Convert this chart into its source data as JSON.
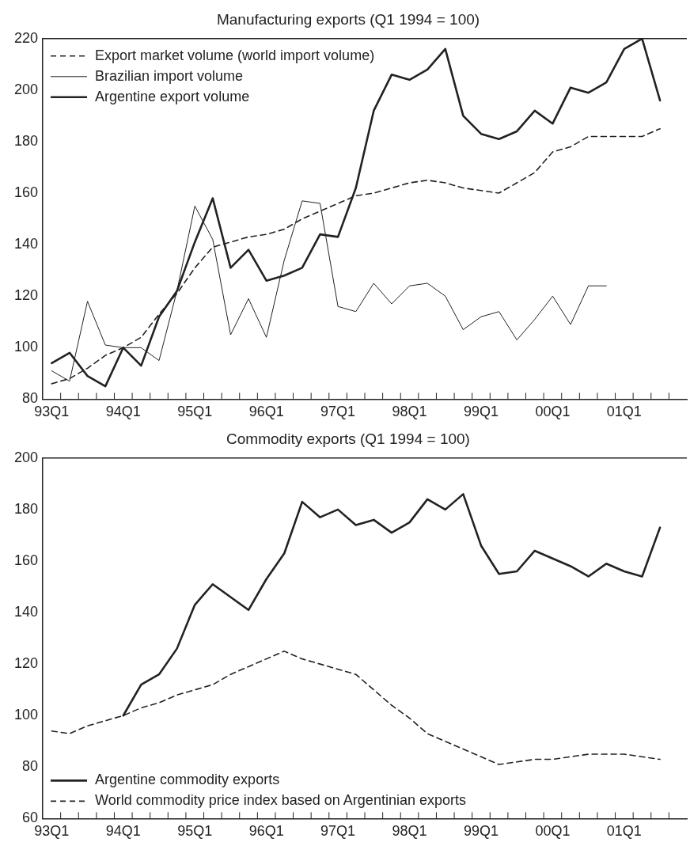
{
  "chart_data": [
    {
      "type": "line",
      "title": "Manufacturing exports (Q1 1994 = 100)",
      "categories": [
        "93Q1",
        null,
        null,
        null,
        "94Q1",
        null,
        null,
        null,
        "95Q1",
        null,
        null,
        null,
        "96Q1",
        null,
        null,
        null,
        "97Q1",
        null,
        null,
        null,
        "98Q1",
        null,
        null,
        null,
        "99Q1",
        null,
        null,
        null,
        "00Q1",
        null,
        null,
        null,
        "01Q1",
        null,
        null,
        null
      ],
      "series": [
        {
          "name": "Export market volume (world import volume)",
          "color": "#222222",
          "line_style": "dashed",
          "values": [
            86,
            88,
            92,
            97,
            100,
            104,
            113,
            121,
            131,
            139,
            141,
            143,
            144,
            146,
            150,
            153,
            156,
            159,
            160,
            162,
            164,
            165,
            164,
            162,
            161,
            160,
            164,
            168,
            176,
            178,
            182,
            182,
            182,
            182,
            185,
            null
          ]
        },
        {
          "name": "Brazilian import volume",
          "color": "#222222",
          "line_style": "solid",
          "values": [
            91,
            87,
            118,
            101,
            100,
            100,
            95,
            122,
            155,
            142,
            105,
            119,
            104,
            134,
            157,
            156,
            116,
            114,
            125,
            117,
            124,
            125,
            120,
            107,
            112,
            114,
            103,
            111,
            120,
            109,
            124,
            124,
            null,
            null,
            null,
            null
          ]
        },
        {
          "name": "Argentine export volume",
          "color": "#222222",
          "line_style": "solid",
          "values": [
            94,
            98,
            89,
            85,
            100,
            93,
            112,
            122,
            141,
            158,
            131,
            138,
            126,
            128,
            131,
            144,
            143,
            162,
            192,
            206,
            204,
            208,
            216,
            190,
            183,
            181,
            184,
            192,
            187,
            201,
            199,
            203,
            216,
            220,
            196,
            null
          ]
        }
      ],
      "ylim": [
        80,
        220
      ],
      "yticks": [
        80,
        100,
        120,
        140,
        160,
        180,
        200,
        220
      ],
      "grid": false,
      "legend": "top left",
      "marker": "none"
    },
    {
      "type": "line",
      "title": "Commodity exports (Q1 1994 = 100)",
      "categories": [
        "93Q1",
        null,
        null,
        null,
        "94Q1",
        null,
        null,
        null,
        "95Q1",
        null,
        null,
        null,
        "96Q1",
        null,
        null,
        null,
        "97Q1",
        null,
        null,
        null,
        "98Q1",
        null,
        null,
        null,
        "99Q1",
        null,
        null,
        null,
        "00Q1",
        null,
        null,
        null,
        "01Q1",
        null,
        null,
        null
      ],
      "series": [
        {
          "name": "Argentine commodity exports",
          "color": "#222222",
          "line_style": "solid",
          "values": [
            null,
            null,
            null,
            null,
            100,
            112,
            116,
            126,
            143,
            151,
            146,
            141,
            153,
            163,
            183,
            177,
            180,
            174,
            176,
            171,
            175,
            184,
            180,
            186,
            166,
            155,
            156,
            164,
            161,
            158,
            154,
            159,
            156,
            154,
            173,
            null
          ]
        },
        {
          "name": "World commodity price index based on Argentinian exports",
          "color": "#222222",
          "line_style": "dashed",
          "values": [
            94,
            93,
            96,
            98,
            100,
            103,
            105,
            108,
            110,
            112,
            116,
            119,
            122,
            125,
            122,
            120,
            118,
            116,
            110,
            104,
            99,
            93,
            90,
            87,
            84,
            81,
            82,
            83,
            83,
            84,
            85,
            85,
            85,
            84,
            83,
            null
          ]
        }
      ],
      "ylim": [
        60,
        200
      ],
      "yticks": [
        60,
        80,
        100,
        120,
        140,
        160,
        180,
        200
      ],
      "grid": false,
      "legend": "bottom left",
      "marker": "none"
    }
  ]
}
